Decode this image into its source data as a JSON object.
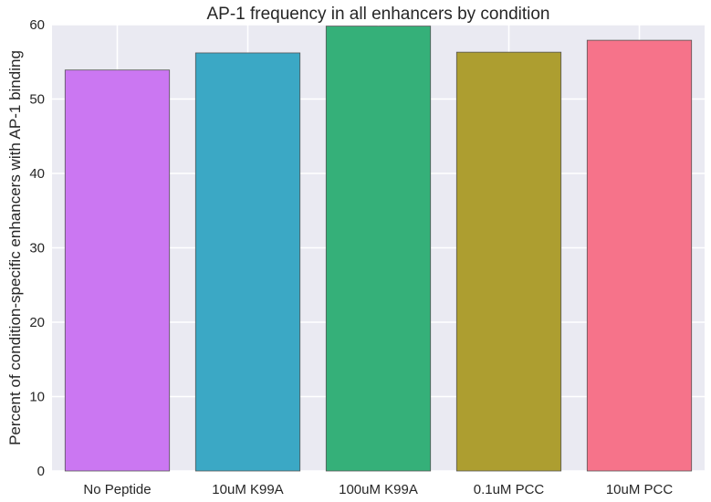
{
  "chart_data": {
    "type": "bar",
    "title": "AP-1 frequency in all enhancers by condition",
    "xlabel": "",
    "ylabel": "Percent of condition-specific enhancers with AP-1 binding",
    "categories": [
      "No Peptide",
      "10uM K99A",
      "100uM K99A",
      "0.1uM PCC",
      "10uM PCC"
    ],
    "values": [
      53.9,
      56.2,
      59.8,
      56.3,
      57.9
    ],
    "colors": [
      "#cb77f2",
      "#3ba8c5",
      "#35b079",
      "#ad9e30",
      "#f6738a"
    ],
    "ylim": [
      0,
      60
    ],
    "yticks": [
      "0",
      "10",
      "20",
      "30",
      "40",
      "50",
      "60"
    ],
    "grid": true,
    "background": "#eaeaf2",
    "gridcolor": "#ffffff"
  }
}
